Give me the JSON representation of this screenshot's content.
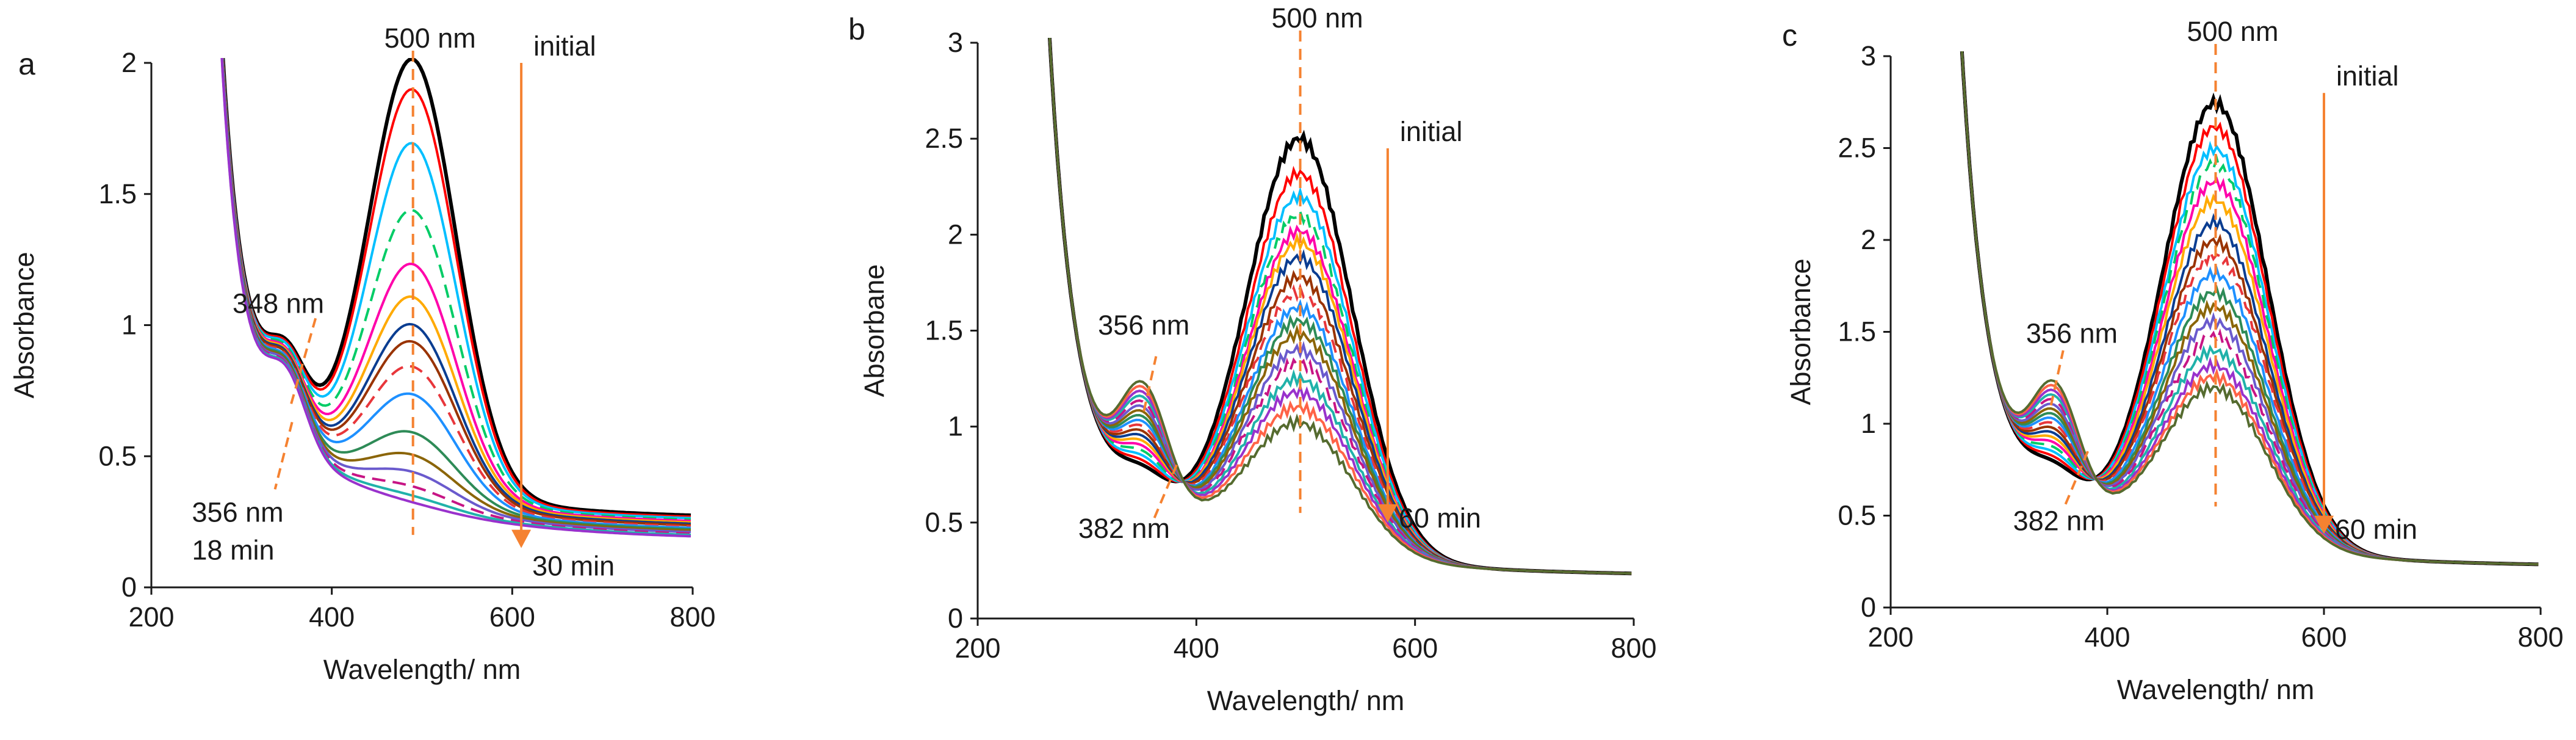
{
  "figure": {
    "xlabel": "Wavelength/ nm",
    "panels": [
      {
        "id": "a",
        "letter": "a",
        "ylabel": "Absorbance",
        "xlim": [
          200,
          800
        ],
        "ylim": [
          0,
          2
        ],
        "xticks": [
          200,
          400,
          600,
          800
        ],
        "yticks": [
          0,
          0.5,
          1,
          1.5,
          2
        ],
        "peak_label": "500 nm",
        "peak_x": 490,
        "arrow": {
          "x": 610,
          "y_start": 2.0,
          "y_end": 0.15,
          "top_label": "initial",
          "bottom_label": "30 min"
        },
        "isosbestic": [
          {
            "label": "348 nm",
            "x": 355,
            "y": 0.7
          },
          {
            "label": "356 nm",
            "x": 356,
            "y": 0.63
          }
        ],
        "extra_label": "18 min",
        "spectra_peaks": [
          1.97,
          1.86,
          1.66,
          1.41,
          1.21,
          1.09,
          0.99,
          0.93,
          0.84,
          0.74,
          0.6,
          0.52,
          0.46,
          0.41,
          0.38,
          0.36
        ]
      },
      {
        "id": "b",
        "letter": "b",
        "ylabel": "Absorbane",
        "xlim": [
          200,
          800
        ],
        "ylim": [
          0,
          3
        ],
        "xticks": [
          200,
          400,
          600,
          800
        ],
        "yticks": [
          0,
          0.5,
          1,
          1.5,
          2,
          2.5,
          3
        ],
        "peak_label": "500 nm",
        "peak_x": 495,
        "arrow": {
          "x": 575,
          "y_start": 2.45,
          "y_end": 0.5,
          "top_label": "initial",
          "bottom_label": "60 min"
        },
        "isosbestic": [
          {
            "label": "356 nm",
            "x": 352,
            "y": 1.08
          },
          {
            "label": "382 nm",
            "x": 382,
            "y": 0.8
          }
        ],
        "extra_label": "",
        "spectra_peaks": [
          2.5,
          2.32,
          2.2,
          2.1,
          2.02,
          1.96,
          1.88,
          1.78,
          1.7,
          1.62,
          1.55,
          1.48,
          1.4,
          1.33,
          1.25,
          1.18,
          1.1,
          1.02
        ]
      },
      {
        "id": "c",
        "letter": "c",
        "ylabel": "Absorbance",
        "xlim": [
          200,
          800
        ],
        "ylim": [
          0,
          3
        ],
        "xticks": [
          200,
          400,
          600,
          800
        ],
        "yticks": [
          0,
          0.5,
          1,
          1.5,
          2,
          2.5,
          3
        ],
        "peak_label": "500 nm",
        "peak_x": 500,
        "arrow": {
          "x": 600,
          "y_start": 2.8,
          "y_end": 0.4,
          "top_label": "initial",
          "bottom_label": "60 min"
        },
        "isosbestic": [
          {
            "label": "356 nm",
            "x": 348,
            "y": 1.1
          },
          {
            "label": "382 nm",
            "x": 382,
            "y": 0.85
          }
        ],
        "extra_label": "",
        "spectra_peaks": [
          2.75,
          2.62,
          2.5,
          2.42,
          2.32,
          2.22,
          2.1,
          2.0,
          1.92,
          1.82,
          1.72,
          1.64,
          1.56,
          1.48,
          1.4,
          1.32,
          1.26,
          1.2
        ]
      }
    ]
  },
  "chart_data": [
    {
      "type": "line",
      "panel": "a",
      "title": "",
      "xlabel": "Wavelength/ nm",
      "ylabel": "Absorbance",
      "xlim": [
        200,
        800
      ],
      "ylim": [
        0,
        2
      ],
      "annotations": [
        "500 nm",
        "initial",
        "348 nm",
        "356 nm",
        "18 min",
        "30 min"
      ],
      "series_description": "16 absorption spectra; band at ~490 nm decreasing from initial to 30 min",
      "peak_absorbance_per_spectrum": [
        1.97,
        1.86,
        1.66,
        1.41,
        1.21,
        1.09,
        0.99,
        0.93,
        0.84,
        0.74,
        0.6,
        0.52,
        0.46,
        0.41,
        0.38,
        0.36
      ]
    },
    {
      "type": "line",
      "panel": "b",
      "title": "",
      "xlabel": "Wavelength/ nm",
      "ylabel": "Absorbane",
      "xlim": [
        200,
        800
      ],
      "ylim": [
        0,
        3
      ],
      "annotations": [
        "500 nm",
        "initial",
        "356 nm",
        "382 nm",
        "60 min"
      ],
      "series_description": "18 absorption spectra; band at ~495 nm decreasing from initial to 60 min",
      "peak_absorbance_per_spectrum": [
        2.5,
        2.32,
        2.2,
        2.1,
        2.02,
        1.96,
        1.88,
        1.78,
        1.7,
        1.62,
        1.55,
        1.48,
        1.4,
        1.33,
        1.25,
        1.18,
        1.1,
        1.02
      ]
    },
    {
      "type": "line",
      "panel": "c",
      "title": "",
      "xlabel": "Wavelength/ nm",
      "ylabel": "Absorbance",
      "xlim": [
        200,
        800
      ],
      "ylim": [
        0,
        3
      ],
      "annotations": [
        "500 nm",
        "initial",
        "356 nm",
        "382 nm",
        "60 min"
      ],
      "series_description": "18 absorption spectra; band at ~500 nm decreasing from initial to 60 min",
      "peak_absorbance_per_spectrum": [
        2.75,
        2.62,
        2.5,
        2.42,
        2.32,
        2.22,
        2.1,
        2.0,
        1.92,
        1.82,
        1.72,
        1.64,
        1.56,
        1.48,
        1.4,
        1.32,
        1.26,
        1.2
      ]
    }
  ],
  "colors": {
    "axis": "#1a1a1a",
    "guide": "#f58231",
    "arrow": "#f58231",
    "palette": [
      "#000000",
      "#ff0000",
      "#00bfff",
      "#00cc66",
      "#ff00aa",
      "#ffaa00",
      "#0a3d91",
      "#993300",
      "#e8363b",
      "#1e90ff",
      "#2e8b57",
      "#8b6508",
      "#6a5acd",
      "#c71585",
      "#20b2aa",
      "#9932cc",
      "#ff6347",
      "#556b2f"
    ]
  }
}
